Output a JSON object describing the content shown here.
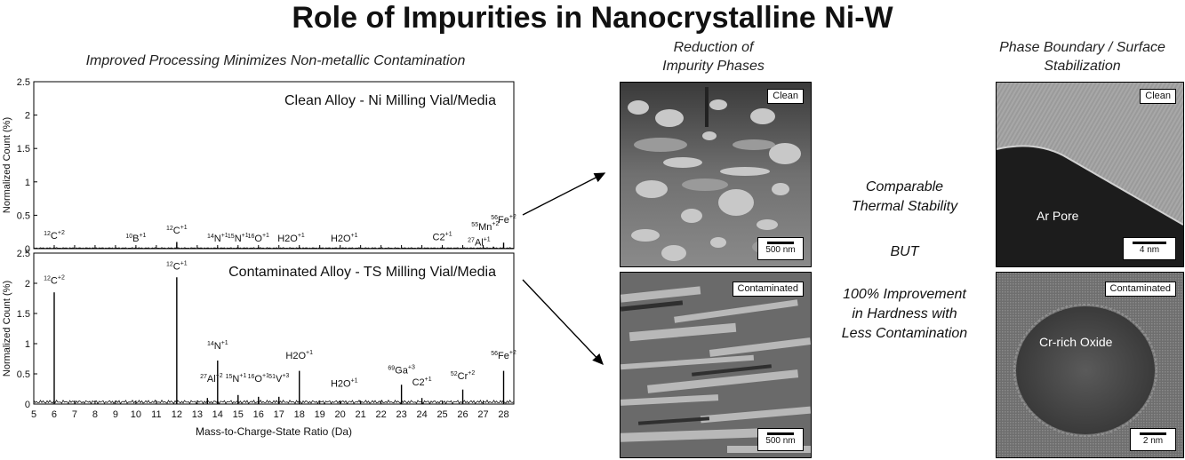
{
  "title": "Role of Impurities in Nanocrystalline Ni-W",
  "chart_heading": "Improved Processing Minimizes Non-metallic Contamination",
  "micro_heading": [
    "Reduction of",
    "Impurity Phases"
  ],
  "tem_heading": [
    "Phase Boundary / Surface",
    "Stabilization"
  ],
  "middle_text": {
    "line1": [
      "Comparable",
      "Thermal Stability"
    ],
    "line2": "BUT",
    "line3": [
      "100% Improvement",
      "in Hardness with",
      "Less Contamination"
    ]
  },
  "micrographs": {
    "top": {
      "tag": "Clean",
      "scale": "500 nm"
    },
    "bottom": {
      "tag": "Contaminated",
      "scale": "500 nm"
    }
  },
  "tem": {
    "top": {
      "tag": "Clean",
      "label": "Ar Pore",
      "scale": "4 nm"
    },
    "bottom": {
      "tag": "Contaminated",
      "label": "Cr-rich Oxide",
      "scale": "2 nm"
    }
  },
  "chart_data": [
    {
      "type": "line",
      "title": "Clean Alloy - Ni Milling Vial/Media",
      "xlabel": "",
      "ylabel": "Normalized Count (%)",
      "xlim": [
        5,
        28.5
      ],
      "ylim": [
        0,
        2.5
      ],
      "yticks": [
        "0",
        "0.5",
        "1",
        "1.5",
        "2",
        "2.5"
      ],
      "peaks": [
        {
          "x": 6,
          "y": 0.02
        },
        {
          "x": 10,
          "y": 0.02
        },
        {
          "x": 12,
          "y": 0.1
        },
        {
          "x": 14,
          "y": 0.02
        },
        {
          "x": 15,
          "y": 0.02
        },
        {
          "x": 16,
          "y": 0.02
        },
        {
          "x": 18,
          "y": 0.02
        },
        {
          "x": 25,
          "y": 0.02
        },
        {
          "x": 27,
          "y": 0.03
        },
        {
          "x": 27.5,
          "y": 0.03
        },
        {
          "x": 28,
          "y": 0.09
        }
      ],
      "annotations": [
        {
          "x": 6,
          "y": 0.12,
          "base": "12",
          "sym": "C",
          "sup": "+2"
        },
        {
          "x": 10,
          "y": 0.08,
          "base": "10",
          "sym": "B",
          "sup": "+1"
        },
        {
          "x": 12,
          "y": 0.2,
          "base": "12",
          "sym": "C",
          "sup": "+1"
        },
        {
          "x": 14,
          "y": 0.08,
          "base": "14",
          "sym": "N",
          "sup": "+1"
        },
        {
          "x": 15,
          "y": 0.08,
          "base": "15",
          "sym": "N",
          "sup": "+1"
        },
        {
          "x": 16,
          "y": 0.08,
          "base": "16",
          "sym": "O",
          "sup": "+1"
        },
        {
          "x": 17.6,
          "y": 0.08,
          "base": "",
          "sym": "H2O",
          "sup": "+1"
        },
        {
          "x": 20.2,
          "y": 0.08,
          "base": "",
          "sym": "H2O",
          "sup": "+1"
        },
        {
          "x": 25,
          "y": 0.1,
          "base": "",
          "sym": "C2",
          "sup": "+1"
        },
        {
          "x": 27.1,
          "y": 0.25,
          "base": "55",
          "sym": "Mn",
          "sup": "+2"
        },
        {
          "x": 26.8,
          "y": 0.02,
          "base": "27",
          "sym": "Al",
          "sup": "+1"
        },
        {
          "x": 28,
          "y": 0.36,
          "base": "56",
          "sym": "Fe",
          "sup": "+2"
        }
      ]
    },
    {
      "type": "line",
      "title": "Contaminated Alloy - TS Milling Vial/Media",
      "xlabel": "Mass-to-Charge-State Ratio (Da)",
      "ylabel": "Normalized Count (%)",
      "xlim": [
        5,
        28.5
      ],
      "ylim": [
        0,
        2.5
      ],
      "xticks": [
        5,
        6,
        7,
        8,
        9,
        10,
        11,
        12,
        13,
        14,
        15,
        16,
        17,
        18,
        19,
        20,
        21,
        22,
        23,
        24,
        25,
        26,
        27,
        28
      ],
      "yticks": [
        "0",
        "0.5",
        "1",
        "1.5",
        "2",
        "2.5"
      ],
      "peaks": [
        {
          "x": 6,
          "y": 1.85
        },
        {
          "x": 12,
          "y": 2.1
        },
        {
          "x": 13.5,
          "y": 0.1
        },
        {
          "x": 14,
          "y": 0.72
        },
        {
          "x": 15,
          "y": 0.15
        },
        {
          "x": 16,
          "y": 0.12
        },
        {
          "x": 17,
          "y": 0.12
        },
        {
          "x": 18,
          "y": 0.55
        },
        {
          "x": 20,
          "y": 0.05
        },
        {
          "x": 23,
          "y": 0.32
        },
        {
          "x": 24,
          "y": 0.1
        },
        {
          "x": 26,
          "y": 0.24
        },
        {
          "x": 28,
          "y": 0.55
        }
      ],
      "annotations": [
        {
          "x": 6,
          "y": 1.96,
          "base": "12",
          "sym": "C",
          "sup": "+2"
        },
        {
          "x": 12,
          "y": 2.2,
          "base": "12",
          "sym": "C",
          "sup": "+1"
        },
        {
          "x": 13.7,
          "y": 0.34,
          "base": "27",
          "sym": "Al",
          "sup": "+2"
        },
        {
          "x": 14,
          "y": 0.88,
          "base": "14",
          "sym": "N",
          "sup": "+1"
        },
        {
          "x": 14.9,
          "y": 0.34,
          "base": "15",
          "sym": "N",
          "sup": "+1"
        },
        {
          "x": 16,
          "y": 0.34,
          "base": "16",
          "sym": "O",
          "sup": "+1"
        },
        {
          "x": 17,
          "y": 0.34,
          "base": "51",
          "sym": "V",
          "sup": "+3"
        },
        {
          "x": 18,
          "y": 0.72,
          "base": "",
          "sym": "H2O",
          "sup": "+1"
        },
        {
          "x": 20.2,
          "y": 0.26,
          "base": "",
          "sym": "H2O",
          "sup": "+1"
        },
        {
          "x": 23,
          "y": 0.48,
          "base": "69",
          "sym": "Ga",
          "sup": "+3"
        },
        {
          "x": 24,
          "y": 0.28,
          "base": "",
          "sym": "C2",
          "sup": "+1"
        },
        {
          "x": 26,
          "y": 0.38,
          "base": "52",
          "sym": "Cr",
          "sup": "+2"
        },
        {
          "x": 28,
          "y": 0.72,
          "base": "56",
          "sym": "Fe",
          "sup": "+2"
        }
      ]
    }
  ]
}
